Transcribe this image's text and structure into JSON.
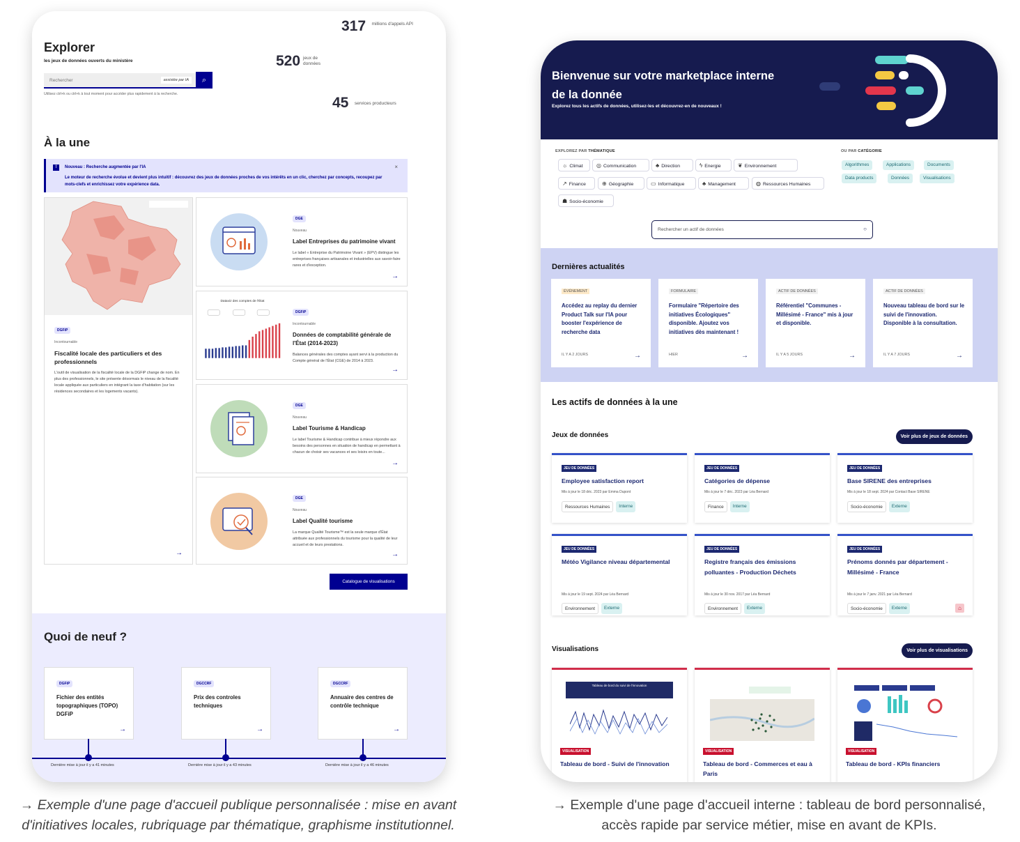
{
  "left": {
    "stats": [
      {
        "value": "317",
        "label": "millions d'appels API"
      },
      {
        "value": "520",
        "label": "jeux de données"
      },
      {
        "value": "45",
        "label": "services producteurs"
      }
    ],
    "title": "Explorer",
    "subtitle": "les jeux de données ouverts du ministère",
    "search": {
      "placeholder": "Rechercher",
      "ia_label": "assistée par IA",
      "hint": "Utilisez ctrl+k ou ctrl+k à tout moment pour accéder plus rapidement à la recherche."
    },
    "a_la_une": "À la une",
    "notice": {
      "title": "Nouveau : Recherche augmentée par l'IA",
      "body": "Le moteur de recherche évolue et devient plus intuitif : découvrez des jeux de données proches de vos intérêts en un clic, cherchez par concepts, recoupez par mots-clefs et enrichissez votre expérience data.",
      "close": "×"
    },
    "main_feature": {
      "tag": "DGFiP",
      "kicker": "Incontournable",
      "title": "Fiscalité locale des particuliers et des professionnels",
      "desc": "L'outil de visualisation de la fiscalité locale de la DGFiP change de nom. En plus des professionnels, le site présente désormais le niveau de la fiscalité locale appliquée aux particuliers en intégrant la taxe d'habitation (sur les résidences secondaires et les logements vacants)."
    },
    "features": [
      {
        "tag": "DGE",
        "kicker": "Nouveau",
        "title": "Label Entreprises du patrimoine vivant",
        "desc": "Le label « Entreprise du Patrimoine Vivant » (EPV) distingue les entreprises françaises artisanales et industrielles aux savoir-faire rares et d'exception."
      },
      {
        "tag": "DGFiP",
        "kicker": "Incontournable",
        "title": "Données de comptabilité générale de l'État (2014-2023)",
        "desc": "Balances générales des comptes ayant servi à la production du Compte général de l'État (CGE) de 2014 à 2023.",
        "thumb_title": "Dataviz des comptes de l'État"
      },
      {
        "tag": "DGE",
        "kicker": "Nouveau",
        "title": "Label Tourisme & Handicap",
        "desc": "Le label Tourisme & Handicap contribue à mieux répondre aux besoins des personnes en situation de handicap en permettant à chacun de choisir ses vacances et ses loisirs en toute..."
      },
      {
        "tag": "DGE",
        "kicker": "Nouveau",
        "title": "Label Qualité tourisme",
        "desc": "La marque Qualité Tourisme™ est la seule marque d'État attribuée aux professionnels du tourisme pour la qualité de leur accueil et de leurs prestations."
      }
    ],
    "catalog_button": "Catalogue de visualisations",
    "quoi_de_neuf": "Quoi de neuf ?",
    "news": [
      {
        "tag": "DGFiP",
        "title": "Fichier des entités topographiques (TOPO) DGFiP",
        "updated": "Dernière mise à jour il y a 41 minutes"
      },
      {
        "tag": "DGCCRF",
        "title": "Prix des controles techniques",
        "updated": "Dernière mise à jour il y a 43 minutes"
      },
      {
        "tag": "DGCCRF",
        "title": "Annuaire des centres de contrôle technique",
        "updated": "Dernière mise à jour il y a 46 minutes"
      }
    ],
    "arrow": "→"
  },
  "right": {
    "hero": {
      "title": "Bienvenue sur votre marketplace interne de la donnée",
      "subtitle": "Explorez tous les actifs de données, utilisez-les et découvrez-en de nouveaux !"
    },
    "explore_label_prefix": "EXPLOREZ PAR ",
    "explore_label_strong": "THÉMATIQUE",
    "themes": [
      {
        "icon": "☼",
        "label": "Climat"
      },
      {
        "icon": "◎",
        "label": "Communication"
      },
      {
        "icon": "♣",
        "label": "Direction"
      },
      {
        "icon": "ϟ",
        "label": "Energie"
      },
      {
        "icon": "❦",
        "label": "Environnement"
      },
      {
        "icon": "↗",
        "label": "Finance"
      },
      {
        "icon": "⊕",
        "label": "Géographie"
      },
      {
        "icon": "▭",
        "label": "Informatique"
      },
      {
        "icon": "♣",
        "label": "Management"
      },
      {
        "icon": "◍",
        "label": "Ressources Humaines"
      },
      {
        "icon": "☗",
        "label": "Socio-économie"
      }
    ],
    "category_label_prefix": "OU PAR ",
    "category_label_strong": "CATÉGORIE",
    "categories": [
      "Algorithmes",
      "Applications",
      "Documents",
      "Data products",
      "Données",
      "Visualisations"
    ],
    "search_placeholder": "Rechercher un actif de données",
    "actus_title": "Dernières actualités",
    "actus": [
      {
        "kind": "ÉVÉNEMENT",
        "title": "Accédez au replay du dernier Product Talk sur l'IA pour booster l'expérience de recherche data",
        "date": "IL Y A 2 JOURS"
      },
      {
        "kind": "FORMULAIRE",
        "title": "Formulaire \"Répertoire des initiatives Écologiques\" disponible. Ajoutez vos initiatives dès maintenant !",
        "date": "HIER"
      },
      {
        "kind": "ACTIF DE DONNÉES",
        "title": "Référentiel \"Communes - Millésimé - France\" mis à jour et disponible.",
        "date": "IL Y A 5 JOURS"
      },
      {
        "kind": "ACTIF DE DONNÉES",
        "title": "Nouveau tableau de bord sur le suivi de l'innovation. Disponible à la consultation.",
        "date": "IL Y A 7 JOURS"
      }
    ],
    "assets_title": "Les actifs de données à la une",
    "datasets_title": "Jeux de données",
    "datasets_more": "Voir plus de jeux de données",
    "datasets": [
      {
        "badge": "JEU DE DONNÉES",
        "title": "Employee satisfaction report",
        "meta": "Mis à jour le 18 déc. 2023 par Emma Dupont",
        "theme": "Ressources Humaines",
        "access": "Interne"
      },
      {
        "badge": "JEU DE DONNÉES",
        "title": "Catégories de dépense",
        "meta": "Mis à jour le 7 déc. 2023 par Léa Bernard",
        "theme": "Finance",
        "access": "Interne"
      },
      {
        "badge": "JEU DE DONNÉES",
        "title": "Base SIRENE des entreprises",
        "meta": "Mis à jour le 18 sept. 2024 par Contact Base SIRENE",
        "theme": "Socio-économie",
        "access": "Externe"
      },
      {
        "badge": "JEU DE DONNÉES",
        "title": "Météo Vigilance niveau départemental",
        "meta": "Mis à jour le 19 sept. 2024 par Léa Bernard",
        "theme": "Environnement",
        "access": "Externe"
      },
      {
        "badge": "JEU DE DONNÉES",
        "title": "Registre français des émissions polluantes - Production Déchets",
        "meta": "Mis à jour le 30 nov. 2017 par Léa Bernard",
        "theme": "Environnement",
        "access": "Externe"
      },
      {
        "badge": "JEU DE DONNÉES",
        "title": "Prénoms donnés par département - Millésimé - France",
        "meta": "Mis à jour le 7 janv. 2021 par Léa Bernard",
        "theme": "Socio-économie",
        "access": "Externe"
      }
    ],
    "viz_title": "Visualisations",
    "viz_more": "Voir plus de visualisations",
    "visualisations": [
      {
        "badge": "VISUALISATION",
        "title": "Tableau de bord - Suivi de l'innovation",
        "thumb_title": "Tableau de bord du suivi de l'innovation"
      },
      {
        "badge": "VISUALISATION",
        "title": "Tableau de bord - Commerces et eau à Paris"
      },
      {
        "badge": "VISUALISATION",
        "title": "Tableau de bord - KPIs financiers"
      }
    ],
    "arrow": "→"
  },
  "captions": {
    "left": "→ Exemple d'une page d'accueil publique personnalisée : mise en avant d'initiatives locales, rubriquage par thématique, graphisme institutionnel.",
    "right": "→ Exemple d'une page d'accueil interne : tableau de bord personnalisé, accès rapide par service métier, mise en avant de KPIs."
  },
  "colors": {
    "left_primary": "#000091",
    "right_primary": "#161b4f",
    "lavender": "#ced3f3",
    "teal_chip": "#d9f1f1",
    "viz_red": "#c8102e"
  }
}
